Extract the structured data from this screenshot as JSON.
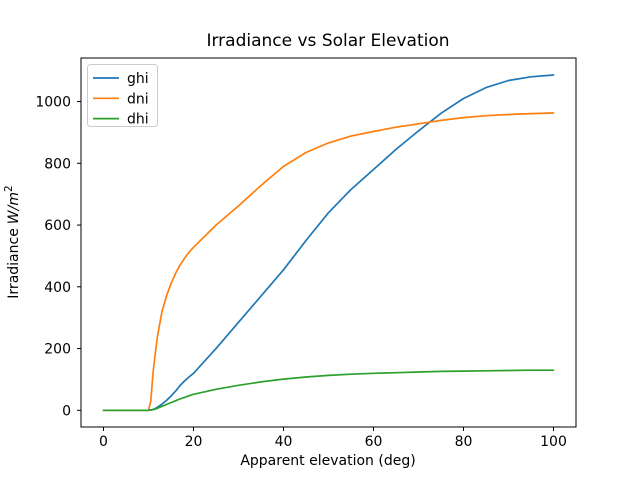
{
  "figure": {
    "background": "#ffffff",
    "axis_color": "#000000",
    "tick_label_color": "#000000",
    "legend_border_color": "#cccccc",
    "legend_background": "#ffffff",
    "legend_position": "upper left"
  },
  "ylabel_display": {
    "prefix": "Irradiance",
    "unit": "W/m",
    "sup": "2"
  },
  "chart_data": {
    "type": "line",
    "title": "Irradiance vs Solar Elevation",
    "xlabel": "Apparent elevation (deg)",
    "ylabel": "Irradiance W/m^2",
    "xlim": [
      -5,
      105
    ],
    "ylim": [
      -54,
      1141
    ],
    "xticks": [
      0,
      20,
      40,
      60,
      80,
      100
    ],
    "yticks": [
      0,
      200,
      400,
      600,
      800,
      1000
    ],
    "grid": false,
    "legend_position": "upper left",
    "x": [
      0,
      2.5,
      5,
      7.5,
      10,
      10.5,
      11,
      11.5,
      12,
      13,
      14,
      15,
      16,
      17,
      18,
      19,
      20,
      25,
      30,
      35,
      40,
      45,
      50,
      55,
      60,
      65,
      70,
      75,
      80,
      85,
      90,
      95,
      100
    ],
    "series": [
      {
        "name": "ghi",
        "color": "#1f77b4",
        "values": [
          0,
          0,
          0,
          0,
          0,
          1,
          3,
          6,
          10,
          20,
          32,
          46,
          62,
          80,
          95,
          108,
          120,
          200,
          285,
          370,
          455,
          550,
          640,
          715,
          780,
          845,
          905,
          962,
          1010,
          1045,
          1068,
          1080,
          1086
        ]
      },
      {
        "name": "dni",
        "color": "#ff7f0e",
        "values": [
          0,
          0,
          0,
          0,
          0,
          30,
          120,
          185,
          240,
          320,
          370,
          410,
          443,
          470,
          492,
          512,
          528,
          600,
          662,
          728,
          790,
          835,
          866,
          888,
          903,
          917,
          928,
          939,
          948,
          954,
          958,
          961,
          963
        ]
      },
      {
        "name": "dhi",
        "color": "#2ca02c",
        "values": [
          0,
          0,
          0,
          0,
          0,
          1,
          2,
          4,
          7,
          13,
          19,
          25,
          31,
          37,
          42,
          47,
          52,
          68,
          81,
          92,
          101,
          108,
          113,
          117,
          120,
          122,
          124,
          126,
          127,
          128,
          129,
          130,
          130
        ]
      }
    ]
  }
}
